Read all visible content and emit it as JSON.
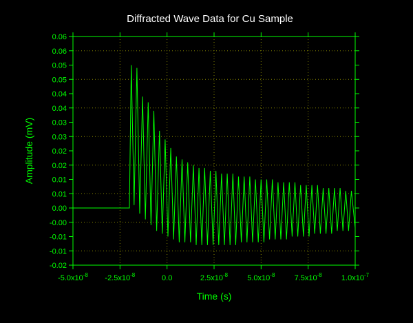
{
  "colors": {
    "background": "#000000",
    "axis": "#00ff00",
    "grid": "#888800",
    "title": "#ffffff",
    "series": "#00ff00"
  },
  "chart_data": {
    "type": "line",
    "title": "Diffracted Wave Data for Cu Sample",
    "xlabel": "Time (s)",
    "ylabel": "Amplitude (mV)",
    "xlim": [
      -5e-08,
      1e-07
    ],
    "ylim": [
      -0.02,
      0.06
    ],
    "grid": true,
    "legend": "none",
    "x_ticks": [
      {
        "value": -5e-08,
        "mantissa": "-5.0x10",
        "exp": "-8"
      },
      {
        "value": -2.5e-08,
        "mantissa": "-2.5x10",
        "exp": "-8"
      },
      {
        "value": 0,
        "mantissa": "0.0",
        "exp": ""
      },
      {
        "value": 2.5e-08,
        "mantissa": "2.5x10",
        "exp": "-8"
      },
      {
        "value": 5e-08,
        "mantissa": "5.0x10",
        "exp": "-8"
      },
      {
        "value": 7.5e-08,
        "mantissa": "7.5x10",
        "exp": "-8"
      },
      {
        "value": 1e-07,
        "mantissa": "1.0x10",
        "exp": "-7"
      }
    ],
    "y_ticks": [
      {
        "value": 0.06,
        "label": "0.06"
      },
      {
        "value": 0.055,
        "label": "0.06"
      },
      {
        "value": 0.05,
        "label": "0.05"
      },
      {
        "value": 0.045,
        "label": "0.05"
      },
      {
        "value": 0.04,
        "label": "0.04"
      },
      {
        "value": 0.035,
        "label": "0.04"
      },
      {
        "value": 0.03,
        "label": "0.03"
      },
      {
        "value": 0.025,
        "label": "0.03"
      },
      {
        "value": 0.02,
        "label": "0.02"
      },
      {
        "value": 0.015,
        "label": "0.02"
      },
      {
        "value": 0.01,
        "label": "0.01"
      },
      {
        "value": 0.005,
        "label": "0.01"
      },
      {
        "value": 0.0,
        "label": "0.00"
      },
      {
        "value": -0.005,
        "label": "-0.00"
      },
      {
        "value": -0.01,
        "label": "-0.01"
      },
      {
        "value": -0.015,
        "label": "-0.01"
      },
      {
        "value": -0.02,
        "label": "-0.02"
      }
    ],
    "series": [
      {
        "x": [
          -5e-08,
          -4.5e-08,
          -4e-08,
          -3.5e-08,
          -3e-08,
          -2.5e-08,
          -2e-08,
          -1.9e-08,
          -1.75e-08,
          -1.6e-08,
          -1.45e-08,
          -1.3e-08,
          -1.15e-08,
          -1e-08,
          -8.5e-09,
          -7e-09,
          -5.5e-09,
          -4e-09,
          -2.5e-09,
          -1e-09,
          5e-10,
          2e-09,
          3.5e-09,
          5e-09,
          6.5e-09,
          8e-09,
          9.5e-09,
          1.1e-08,
          1.25e-08,
          1.4e-08,
          1.55e-08,
          1.7e-08,
          1.85e-08,
          2e-08,
          2.15e-08,
          2.3e-08,
          2.45e-08,
          2.6e-08,
          2.75e-08,
          2.9e-08,
          3.05e-08,
          3.2e-08,
          3.35e-08,
          3.5e-08,
          3.65e-08,
          3.8e-08,
          3.95e-08,
          4.1e-08,
          4.25e-08,
          4.4e-08,
          4.55e-08,
          4.7e-08,
          4.85e-08,
          5e-08,
          5.15e-08,
          5.3e-08,
          5.45e-08,
          5.6e-08,
          5.75e-08,
          5.9e-08,
          6.05e-08,
          6.2e-08,
          6.35e-08,
          6.5e-08,
          6.65e-08,
          6.8e-08,
          6.95e-08,
          7.1e-08,
          7.25e-08,
          7.4e-08,
          7.55e-08,
          7.7e-08,
          7.85e-08,
          8e-08,
          8.15e-08,
          8.3e-08,
          8.45e-08,
          8.6e-08,
          8.75e-08,
          8.9e-08,
          9.05e-08,
          9.2e-08,
          9.35e-08,
          9.5e-08,
          9.65e-08,
          9.8e-08,
          1e-07
        ],
        "y": [
          0.0,
          0.0,
          0.0,
          0.0,
          0.0,
          0.0,
          0.0,
          0.05,
          0.001,
          0.049,
          -0.002,
          0.039,
          -0.004,
          0.037,
          -0.006,
          0.034,
          -0.008,
          0.027,
          -0.009,
          0.024,
          -0.01,
          0.021,
          -0.011,
          0.018,
          -0.012,
          0.017,
          -0.012,
          0.016,
          -0.012,
          0.015,
          -0.013,
          0.014,
          -0.013,
          0.014,
          -0.013,
          0.013,
          -0.013,
          0.013,
          -0.013,
          0.012,
          -0.013,
          0.012,
          -0.013,
          0.012,
          -0.013,
          0.011,
          -0.012,
          0.011,
          -0.012,
          0.011,
          -0.012,
          0.01,
          -0.012,
          0.01,
          -0.012,
          0.01,
          -0.011,
          0.01,
          -0.011,
          0.009,
          -0.011,
          0.009,
          -0.011,
          0.009,
          -0.01,
          0.009,
          -0.01,
          0.008,
          -0.01,
          0.008,
          -0.01,
          0.008,
          -0.009,
          0.008,
          -0.009,
          0.007,
          -0.009,
          0.007,
          -0.009,
          0.007,
          -0.008,
          0.007,
          -0.008,
          0.006,
          -0.008,
          0.006,
          -0.007
        ]
      }
    ]
  }
}
